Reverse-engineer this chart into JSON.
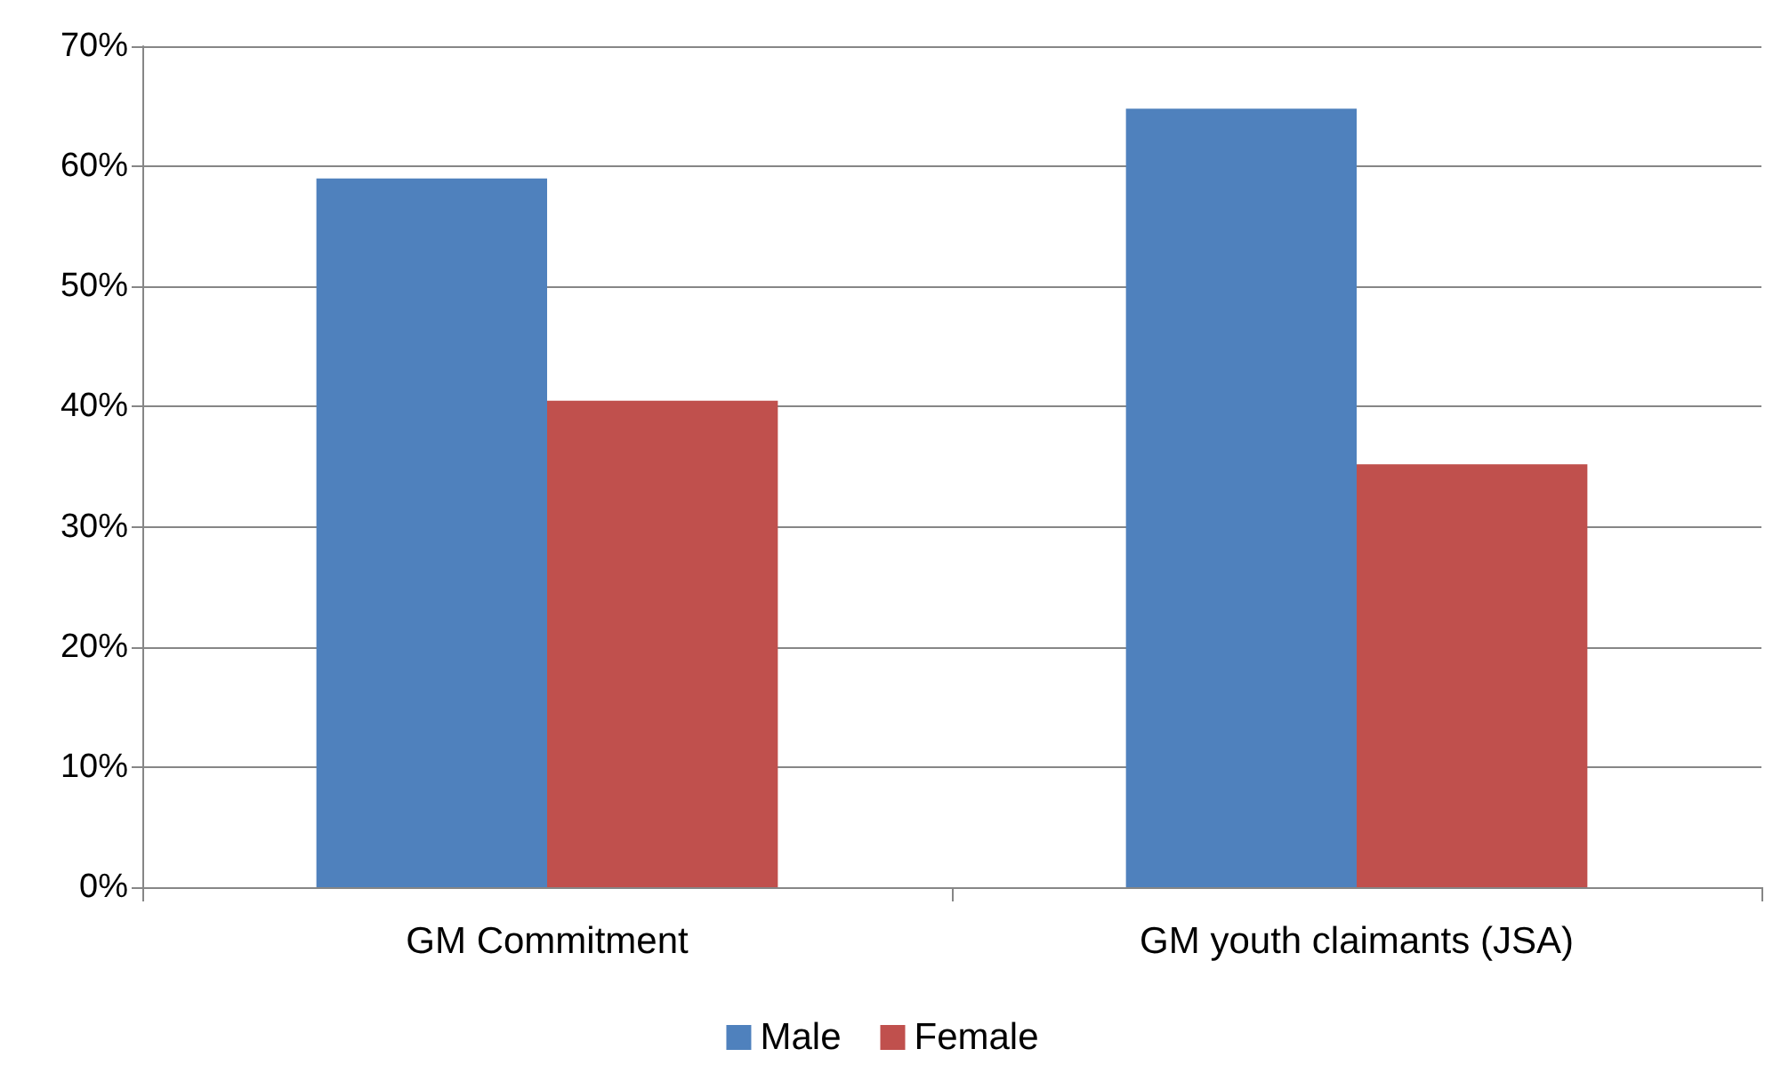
{
  "chart_data": {
    "type": "bar",
    "categories": [
      "GM Commitment",
      "GM youth claimants (JSA)"
    ],
    "series": [
      {
        "name": "Male",
        "color": "#4f81bd",
        "values": [
          59,
          64.8
        ]
      },
      {
        "name": "Female",
        "color": "#c0504d",
        "values": [
          40.5,
          35.2
        ]
      }
    ],
    "ylim": [
      0,
      70
    ],
    "yticks": [
      {
        "value": 0,
        "label": "0%"
      },
      {
        "value": 10,
        "label": "10%"
      },
      {
        "value": 20,
        "label": "20%"
      },
      {
        "value": 30,
        "label": "30%"
      },
      {
        "value": 40,
        "label": "40%"
      },
      {
        "value": 50,
        "label": "50%"
      },
      {
        "value": 60,
        "label": "60%"
      },
      {
        "value": 70,
        "label": "70%"
      }
    ],
    "grid": "y",
    "legend": "bottom"
  }
}
